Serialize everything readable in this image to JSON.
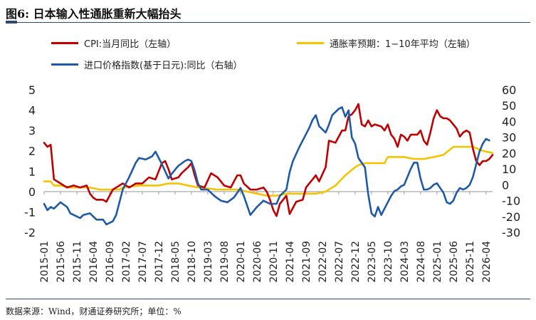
{
  "title": "图6: 日本输入性通胀重新大幅抬头",
  "source": "数据来源：Wind，财通证券研究所；单位：%",
  "chart_data": {
    "type": "line",
    "legend": [
      {
        "name": "CPI:当月同比（左轴）",
        "color": "#c00000",
        "axis": "left"
      },
      {
        "name": "通胀率预期：1−10年平均（左轴）",
        "color": "#f5c400",
        "axis": "left"
      },
      {
        "name": "进口价格指数(基于日元):同比（右轴）",
        "color": "#1f5aa6",
        "axis": "right"
      }
    ],
    "x_tick_labels": [
      "2015-01",
      "2015-06",
      "2015-11",
      "2016-04",
      "2016-09",
      "2017-02",
      "2017-07",
      "2017-12",
      "2018-05",
      "2018-10",
      "2019-03",
      "2019-08",
      "2020-01",
      "2020-06",
      "2020-11",
      "2021-04",
      "2021-09",
      "2022-02",
      "2022-07",
      "2022-12",
      "2023-05",
      "2023-10",
      "2024-03",
      "2024-08",
      "2025-01",
      "2025-06",
      "2025-11",
      "2026-04"
    ],
    "y_left": {
      "min": -2,
      "max": 5,
      "ticks": [
        -2,
        -1,
        0,
        1,
        2,
        3,
        4,
        5
      ]
    },
    "y_right": {
      "min": -30,
      "max": 60,
      "ticks": [
        -30,
        -20,
        -10,
        0,
        10,
        20,
        30,
        40,
        50,
        60
      ]
    },
    "x_range": [
      "2015-01",
      "2026-06"
    ],
    "series": [
      {
        "name": "CPI:当月同比（左轴）",
        "axis": "left",
        "points": [
          [
            "2015-01",
            2.4
          ],
          [
            "2015-02",
            2.2
          ],
          [
            "2015-03",
            2.3
          ],
          [
            "2015-04",
            0.6
          ],
          [
            "2015-06",
            0.4
          ],
          [
            "2015-08",
            0.2
          ],
          [
            "2015-10",
            0.3
          ],
          [
            "2015-12",
            0.2
          ],
          [
            "2016-02",
            0.3
          ],
          [
            "2016-03",
            -0.1
          ],
          [
            "2016-04",
            -0.3
          ],
          [
            "2016-05",
            -0.4
          ],
          [
            "2016-07",
            -0.4
          ],
          [
            "2016-08",
            -0.5
          ],
          [
            "2016-10",
            0.1
          ],
          [
            "2016-12",
            0.3
          ],
          [
            "2017-01",
            0.4
          ],
          [
            "2017-03",
            0.2
          ],
          [
            "2017-05",
            0.4
          ],
          [
            "2017-07",
            0.4
          ],
          [
            "2017-09",
            0.7
          ],
          [
            "2017-11",
            0.6
          ],
          [
            "2017-12",
            1.0
          ],
          [
            "2018-01",
            1.4
          ],
          [
            "2018-02",
            1.5
          ],
          [
            "2018-03",
            1.1
          ],
          [
            "2018-04",
            0.6
          ],
          [
            "2018-06",
            0.7
          ],
          [
            "2018-07",
            0.9
          ],
          [
            "2018-09",
            1.2
          ],
          [
            "2018-10",
            1.4
          ],
          [
            "2018-11",
            0.8
          ],
          [
            "2018-12",
            0.3
          ],
          [
            "2019-02",
            0.2
          ],
          [
            "2019-04",
            0.9
          ],
          [
            "2019-06",
            0.7
          ],
          [
            "2019-08",
            0.3
          ],
          [
            "2019-10",
            0.2
          ],
          [
            "2019-12",
            0.8
          ],
          [
            "2020-01",
            0.8
          ],
          [
            "2020-02",
            0.4
          ],
          [
            "2020-04",
            0.1
          ],
          [
            "2020-06",
            0.1
          ],
          [
            "2020-08",
            0.2
          ],
          [
            "2020-09",
            0.0
          ],
          [
            "2020-10",
            -0.4
          ],
          [
            "2020-11",
            -0.9
          ],
          [
            "2020-12",
            -1.2
          ],
          [
            "2021-01",
            -0.6
          ],
          [
            "2021-02",
            -0.4
          ],
          [
            "2021-03",
            -0.2
          ],
          [
            "2021-04",
            -1.1
          ],
          [
            "2021-06",
            -0.5
          ],
          [
            "2021-08",
            -0.4
          ],
          [
            "2021-09",
            0.2
          ],
          [
            "2021-11",
            0.6
          ],
          [
            "2021-12",
            0.8
          ],
          [
            "2022-01",
            0.5
          ],
          [
            "2022-03",
            1.2
          ],
          [
            "2022-04",
            2.5
          ],
          [
            "2022-06",
            2.4
          ],
          [
            "2022-08",
            3.0
          ],
          [
            "2022-09",
            3.0
          ],
          [
            "2022-10",
            3.7
          ],
          [
            "2022-11",
            3.8
          ],
          [
            "2022-12",
            4.0
          ],
          [
            "2023-01",
            4.3
          ],
          [
            "2023-02",
            3.3
          ],
          [
            "2023-03",
            3.2
          ],
          [
            "2023-04",
            3.5
          ],
          [
            "2023-05",
            3.2
          ],
          [
            "2023-06",
            3.3
          ],
          [
            "2023-08",
            3.2
          ],
          [
            "2023-09",
            3.0
          ],
          [
            "2023-10",
            3.3
          ],
          [
            "2023-11",
            2.8
          ],
          [
            "2023-12",
            2.6
          ],
          [
            "2024-01",
            2.2
          ],
          [
            "2024-02",
            2.8
          ],
          [
            "2024-03",
            2.7
          ],
          [
            "2024-04",
            2.5
          ],
          [
            "2024-05",
            2.8
          ],
          [
            "2024-06",
            2.8
          ],
          [
            "2024-07",
            2.8
          ],
          [
            "2024-08",
            3.0
          ],
          [
            "2024-09",
            2.5
          ],
          [
            "2024-10",
            2.3
          ],
          [
            "2024-11",
            2.9
          ],
          [
            "2024-12",
            3.6
          ],
          [
            "2025-01",
            4.0
          ],
          [
            "2025-02",
            3.7
          ],
          [
            "2025-03",
            3.6
          ],
          [
            "2025-04",
            3.6
          ],
          [
            "2025-05",
            3.5
          ],
          [
            "2025-06",
            3.3
          ],
          [
            "2025-07",
            3.1
          ],
          [
            "2025-08",
            2.7
          ],
          [
            "2025-09",
            2.9
          ],
          [
            "2025-10",
            3.0
          ],
          [
            "2025-11",
            2.9
          ],
          [
            "2025-12",
            2.1
          ],
          [
            "2026-01",
            1.5
          ],
          [
            "2026-02",
            1.3
          ],
          [
            "2026-03",
            1.5
          ],
          [
            "2026-04",
            1.5
          ],
          [
            "2026-05",
            1.6
          ],
          [
            "2026-06",
            1.8
          ]
        ]
      },
      {
        "name": "通胀率预期：1−10年平均（左轴）",
        "axis": "left",
        "points": [
          [
            "2015-01",
            0.5
          ],
          [
            "2015-03",
            0.5
          ],
          [
            "2015-04",
            0.3
          ],
          [
            "2015-06",
            0.3
          ],
          [
            "2015-09",
            0.2
          ],
          [
            "2015-12",
            0.2
          ],
          [
            "2016-03",
            0.2
          ],
          [
            "2016-06",
            0.1
          ],
          [
            "2016-07",
            0.1
          ],
          [
            "2016-12",
            0.1
          ],
          [
            "2017-01",
            0.2
          ],
          [
            "2017-06",
            0.3
          ],
          [
            "2017-12",
            0.3
          ],
          [
            "2018-03",
            0.4
          ],
          [
            "2018-06",
            0.4
          ],
          [
            "2018-09",
            0.3
          ],
          [
            "2018-12",
            0.2
          ],
          [
            "2019-06",
            0.1
          ],
          [
            "2019-12",
            0.1
          ],
          [
            "2020-03",
            0.0
          ],
          [
            "2020-06",
            -0.1
          ],
          [
            "2020-09",
            -0.2
          ],
          [
            "2020-12",
            -0.2
          ],
          [
            "2021-03",
            -0.1
          ],
          [
            "2021-06",
            -0.1
          ],
          [
            "2021-09",
            -0.1
          ],
          [
            "2021-12",
            -0.1
          ],
          [
            "2022-03",
            0.0
          ],
          [
            "2022-06",
            0.3
          ],
          [
            "2022-09",
            0.8
          ],
          [
            "2022-12",
            1.2
          ],
          [
            "2023-01",
            1.3
          ],
          [
            "2023-03",
            1.4
          ],
          [
            "2023-06",
            1.4
          ],
          [
            "2023-09",
            1.4
          ],
          [
            "2023-10",
            1.7
          ],
          [
            "2023-12",
            1.7
          ],
          [
            "2024-03",
            1.7
          ],
          [
            "2024-06",
            1.6
          ],
          [
            "2024-09",
            1.6
          ],
          [
            "2024-12",
            1.7
          ],
          [
            "2025-03",
            1.8
          ],
          [
            "2025-06",
            2.2
          ],
          [
            "2025-09",
            2.2
          ],
          [
            "2025-12",
            2.2
          ],
          [
            "2026-03",
            2.0
          ],
          [
            "2026-06",
            1.9
          ]
        ]
      },
      {
        "name": "进口价格指数(基于日元):同比（右轴）",
        "axis": "right",
        "points": [
          [
            "2015-01",
            -12
          ],
          [
            "2015-02",
            -16
          ],
          [
            "2015-03",
            -14
          ],
          [
            "2015-04",
            -15
          ],
          [
            "2015-06",
            -11
          ],
          [
            "2015-08",
            -14
          ],
          [
            "2015-09",
            -18
          ],
          [
            "2015-11",
            -20
          ],
          [
            "2015-12",
            -21
          ],
          [
            "2016-01",
            -19
          ],
          [
            "2016-03",
            -18
          ],
          [
            "2016-05",
            -22
          ],
          [
            "2016-07",
            -22
          ],
          [
            "2016-08",
            -25
          ],
          [
            "2016-10",
            -23
          ],
          [
            "2016-11",
            -19
          ],
          [
            "2016-12",
            -11
          ],
          [
            "2017-01",
            -3
          ],
          [
            "2017-03",
            5
          ],
          [
            "2017-05",
            14
          ],
          [
            "2017-06",
            17
          ],
          [
            "2017-08",
            16
          ],
          [
            "2017-10",
            18
          ],
          [
            "2017-11",
            21
          ],
          [
            "2018-01",
            13
          ],
          [
            "2018-03",
            4
          ],
          [
            "2018-04",
            7
          ],
          [
            "2018-06",
            12
          ],
          [
            "2018-08",
            15
          ],
          [
            "2018-09",
            16
          ],
          [
            "2018-10",
            15
          ],
          [
            "2018-11",
            9
          ],
          [
            "2018-12",
            1
          ],
          [
            "2019-01",
            -3
          ],
          [
            "2019-03",
            -3
          ],
          [
            "2019-05",
            -7
          ],
          [
            "2019-07",
            -10
          ],
          [
            "2019-09",
            -11
          ],
          [
            "2019-11",
            -8
          ],
          [
            "2019-12",
            -5
          ],
          [
            "2020-01",
            -2
          ],
          [
            "2020-02",
            -7
          ],
          [
            "2020-03",
            -13
          ],
          [
            "2020-04",
            -19
          ],
          [
            "2020-06",
            -14
          ],
          [
            "2020-08",
            -10
          ],
          [
            "2020-10",
            -12
          ],
          [
            "2020-12",
            -12
          ],
          [
            "2021-01",
            -7
          ],
          [
            "2021-03",
            -3
          ],
          [
            "2021-04",
            8
          ],
          [
            "2021-05",
            15
          ],
          [
            "2021-07",
            24
          ],
          [
            "2021-09",
            32
          ],
          [
            "2021-10",
            36
          ],
          [
            "2021-11",
            41
          ],
          [
            "2021-12",
            44
          ],
          [
            "2022-01",
            37
          ],
          [
            "2022-03",
            33
          ],
          [
            "2022-04",
            38
          ],
          [
            "2022-05",
            44
          ],
          [
            "2022-07",
            48
          ],
          [
            "2022-08",
            49
          ],
          [
            "2022-09",
            43
          ],
          [
            "2022-10",
            47
          ],
          [
            "2022-11",
            30
          ],
          [
            "2022-12",
            26
          ],
          [
            "2023-01",
            17
          ],
          [
            "2023-03",
            11
          ],
          [
            "2023-04",
            -6
          ],
          [
            "2023-05",
            -18
          ],
          [
            "2023-06",
            -20
          ],
          [
            "2023-07",
            -14
          ],
          [
            "2023-08",
            -19
          ],
          [
            "2023-09",
            -15
          ],
          [
            "2023-10",
            -11
          ],
          [
            "2023-11",
            -7
          ],
          [
            "2023-12",
            -4
          ],
          [
            "2024-01",
            -3
          ],
          [
            "2024-02",
            -1
          ],
          [
            "2024-03",
            0
          ],
          [
            "2024-05",
            10
          ],
          [
            "2024-06",
            14
          ],
          [
            "2024-07",
            14
          ],
          [
            "2024-08",
            4
          ],
          [
            "2024-09",
            -3
          ],
          [
            "2024-10",
            -3
          ],
          [
            "2024-11",
            -2
          ],
          [
            "2024-12",
            0
          ],
          [
            "2025-01",
            1
          ],
          [
            "2025-02",
            -2
          ],
          [
            "2025-03",
            -5
          ],
          [
            "2025-04",
            -11
          ],
          [
            "2025-05",
            -12
          ],
          [
            "2025-06",
            -10
          ],
          [
            "2025-07",
            -5
          ],
          [
            "2025-08",
            -2
          ],
          [
            "2025-09",
            -3
          ],
          [
            "2025-10",
            -2
          ],
          [
            "2025-11",
            0
          ],
          [
            "2025-12",
            5
          ],
          [
            "2026-01",
            13
          ],
          [
            "2026-02",
            21
          ],
          [
            "2026-03",
            26
          ],
          [
            "2026-04",
            29
          ],
          [
            "2026-05",
            28
          ]
        ]
      }
    ]
  }
}
